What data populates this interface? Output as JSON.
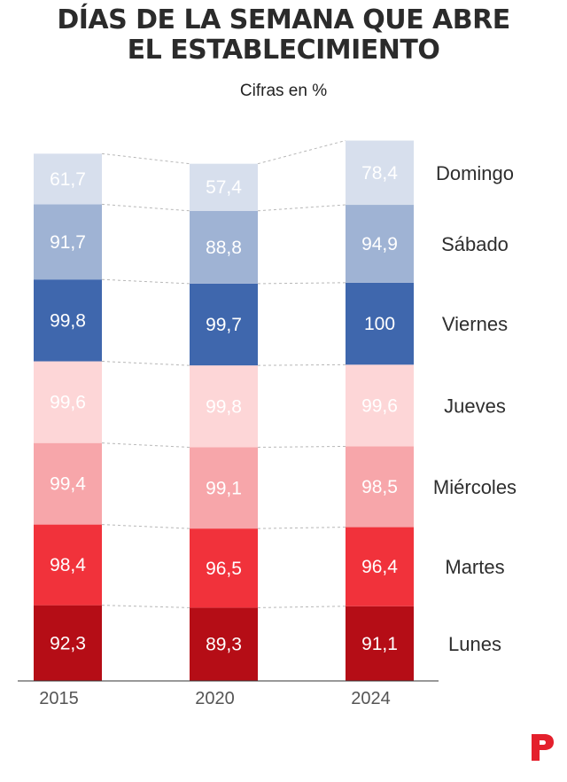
{
  "title_lines": [
    "DÍAS DE LA SEMANA QUE ABRE",
    "EL ESTABLECIMIENTO"
  ],
  "subtitle": "Cifras en %",
  "colors": {
    "Domingo": "#d7dfed",
    "Sábado": "#9fb3d4",
    "Viernes": "#3f67ad",
    "Jueves": "#fdd6d7",
    "Miércoles": "#f7a6aa",
    "Martes": "#f1323b",
    "Lunes": "#b50d16",
    "logo": "#e4202c"
  },
  "chart_data": {
    "type": "bar",
    "stacked": true,
    "categories": [
      "2015",
      "2020",
      "2024"
    ],
    "series": [
      {
        "name": "Lunes",
        "values": [
          92.3,
          89.3,
          91.1
        ]
      },
      {
        "name": "Martes",
        "values": [
          98.4,
          96.5,
          96.4
        ]
      },
      {
        "name": "Miércoles",
        "values": [
          99.4,
          99.1,
          98.5
        ]
      },
      {
        "name": "Jueves",
        "values": [
          99.6,
          99.8,
          99.6
        ]
      },
      {
        "name": "Viernes",
        "values": [
          99.8,
          99.7,
          100
        ]
      },
      {
        "name": "Sábado",
        "values": [
          91.7,
          88.8,
          94.9
        ]
      },
      {
        "name": "Domingo",
        "values": [
          61.7,
          57.4,
          78.4
        ]
      }
    ],
    "value_labels": [
      [
        "92,3",
        "89,3",
        "91,1"
      ],
      [
        "98,4",
        "96,5",
        "96,4"
      ],
      [
        "99,4",
        "99,1",
        "98,5"
      ],
      [
        "99,6",
        "99,8",
        "99,6"
      ],
      [
        "99,8",
        "99,7",
        "100"
      ],
      [
        "91,7",
        "88,8",
        "94,9"
      ],
      [
        "61,7",
        "57,4",
        "78,4"
      ]
    ],
    "legend_placement": "right, labels aligned with the 2024 segments",
    "grid": false
  }
}
